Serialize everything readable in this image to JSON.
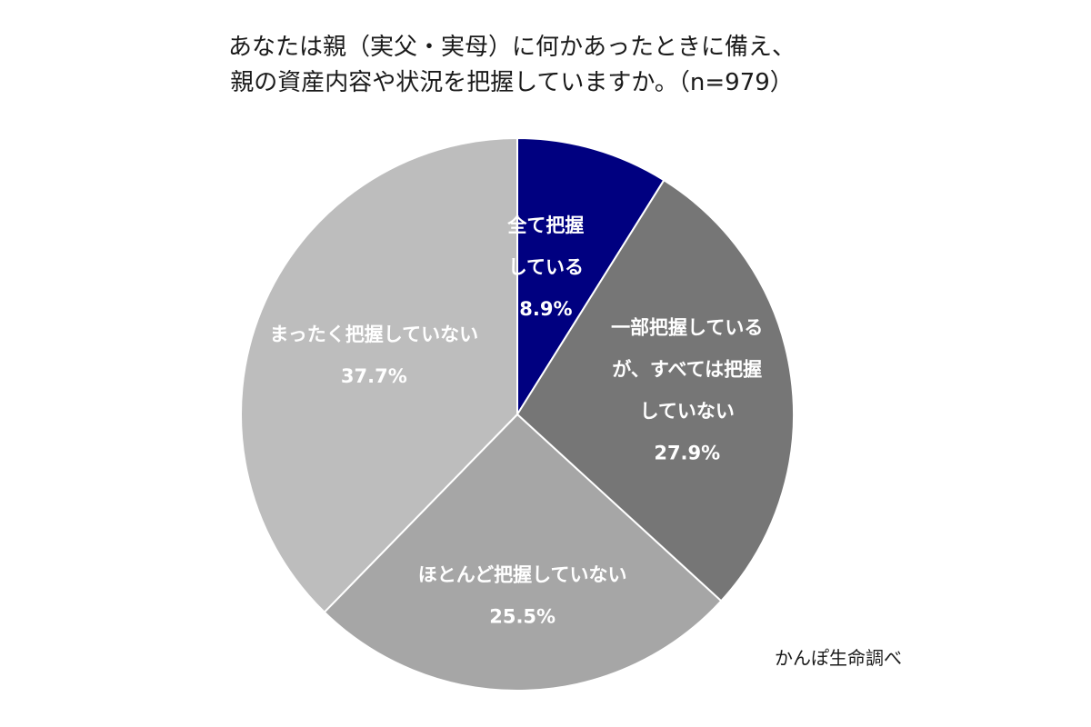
{
  "chart_data": {
    "type": "pie",
    "title_lines": [
      "あなたは親（実父・実母）に何かあったときに備え、",
      "親の資産内容や状況を把握していますか。（n=979）"
    ],
    "start_angle_deg": 0,
    "direction": "clockwise",
    "slices": [
      {
        "label_lines": [
          "全て把握",
          "している"
        ],
        "value": 8.9,
        "value_label": "8.9%",
        "color": "#000080"
      },
      {
        "label_lines": [
          "一部把握している",
          "が、すべては把握",
          "していない"
        ],
        "value": 27.9,
        "value_label": "27.9%",
        "color": "#767676"
      },
      {
        "label_lines": [
          "ほとんど把握していない"
        ],
        "value": 25.5,
        "value_label": "25.5%",
        "color": "#a6a6a6"
      },
      {
        "label_lines": [
          "まったく把握していない"
        ],
        "value": 37.7,
        "value_label": "37.7%",
        "color": "#bdbdbd"
      }
    ],
    "source": "かんぽ生命調べ",
    "legend": "none",
    "data_labels": "inside"
  }
}
